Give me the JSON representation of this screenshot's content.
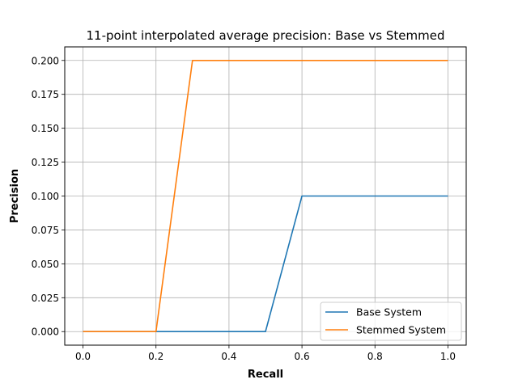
{
  "chart_data": {
    "type": "line",
    "title": "11-point interpolated average precision: Base vs Stemmed",
    "xlabel": "Recall",
    "ylabel": "Precision",
    "xlim": [
      -0.05,
      1.05
    ],
    "ylim": [
      -0.01,
      0.21
    ],
    "x_ticks": [
      0.0,
      0.2,
      0.4,
      0.6,
      0.8,
      1.0
    ],
    "x_tick_labels": [
      "0.0",
      "0.2",
      "0.4",
      "0.6",
      "0.8",
      "1.0"
    ],
    "y_ticks": [
      0.0,
      0.025,
      0.05,
      0.075,
      0.1,
      0.125,
      0.15,
      0.175,
      0.2
    ],
    "y_tick_labels": [
      "0.000",
      "0.025",
      "0.050",
      "0.075",
      "0.100",
      "0.125",
      "0.150",
      "0.175",
      "0.200"
    ],
    "grid": true,
    "legend_position": "lower-right",
    "x": [
      0.0,
      0.1,
      0.2,
      0.3,
      0.4,
      0.5,
      0.6,
      0.7,
      0.8,
      0.9,
      1.0
    ],
    "series": [
      {
        "name": "Base System",
        "color": "#1f77b4",
        "values": [
          0.0,
          0.0,
          0.0,
          0.0,
          0.0,
          0.0,
          0.1,
          0.1,
          0.1,
          0.1,
          0.1
        ]
      },
      {
        "name": "Stemmed System",
        "color": "#ff7f0e",
        "values": [
          0.0,
          0.0,
          0.0,
          0.2,
          0.2,
          0.2,
          0.2,
          0.2,
          0.2,
          0.2,
          0.2
        ]
      }
    ]
  }
}
